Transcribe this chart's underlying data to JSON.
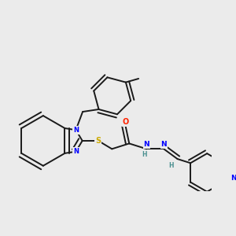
{
  "background_color": "#ebebeb",
  "bond_color": "#1a1a1a",
  "atom_colors": {
    "N": "#0000ff",
    "S": "#ccaa00",
    "O": "#ff2200",
    "H": "#4a9090",
    "C": "#1a1a1a"
  },
  "figsize": [
    3.0,
    3.0
  ],
  "dpi": 100
}
